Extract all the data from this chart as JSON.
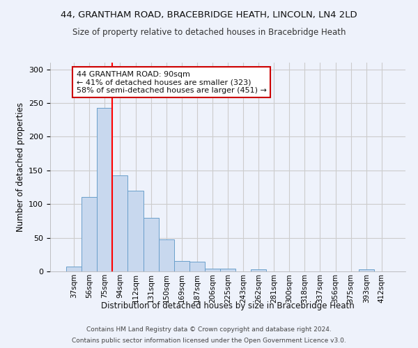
{
  "title_line1": "44, GRANTHAM ROAD, BRACEBRIDGE HEATH, LINCOLN, LN4 2LD",
  "title_line2": "Size of property relative to detached houses in Bracebridge Heath",
  "xlabel": "Distribution of detached houses by size in Bracebridge Heath",
  "ylabel": "Number of detached properties",
  "footer_line1": "Contains HM Land Registry data © Crown copyright and database right 2024.",
  "footer_line2": "Contains public sector information licensed under the Open Government Licence v3.0.",
  "bar_labels": [
    "37sqm",
    "56sqm",
    "75sqm",
    "94sqm",
    "112sqm",
    "131sqm",
    "150sqm",
    "169sqm",
    "187sqm",
    "206sqm",
    "225sqm",
    "243sqm",
    "262sqm",
    "281sqm",
    "300sqm",
    "318sqm",
    "337sqm",
    "356sqm",
    "375sqm",
    "393sqm",
    "412sqm"
  ],
  "bar_values": [
    7,
    111,
    243,
    143,
    120,
    80,
    48,
    16,
    14,
    4,
    4,
    0,
    3,
    0,
    0,
    0,
    0,
    0,
    0,
    3,
    0
  ],
  "bar_color": "#c8d8ee",
  "bar_edge_color": "#6a9fcb",
  "grid_color": "#cccccc",
  "bg_color": "#eef2fb",
  "red_line_index": 2.5,
  "annotation_line1": "44 GRANTHAM ROAD: 90sqm",
  "annotation_line2": "← 41% of detached houses are smaller (323)",
  "annotation_line3": "58% of semi-detached houses are larger (451) →",
  "annotation_box_color": "#ffffff",
  "annotation_box_edge": "#cc0000",
  "ylim": [
    0,
    310
  ],
  "yticks": [
    0,
    50,
    100,
    150,
    200,
    250,
    300
  ]
}
